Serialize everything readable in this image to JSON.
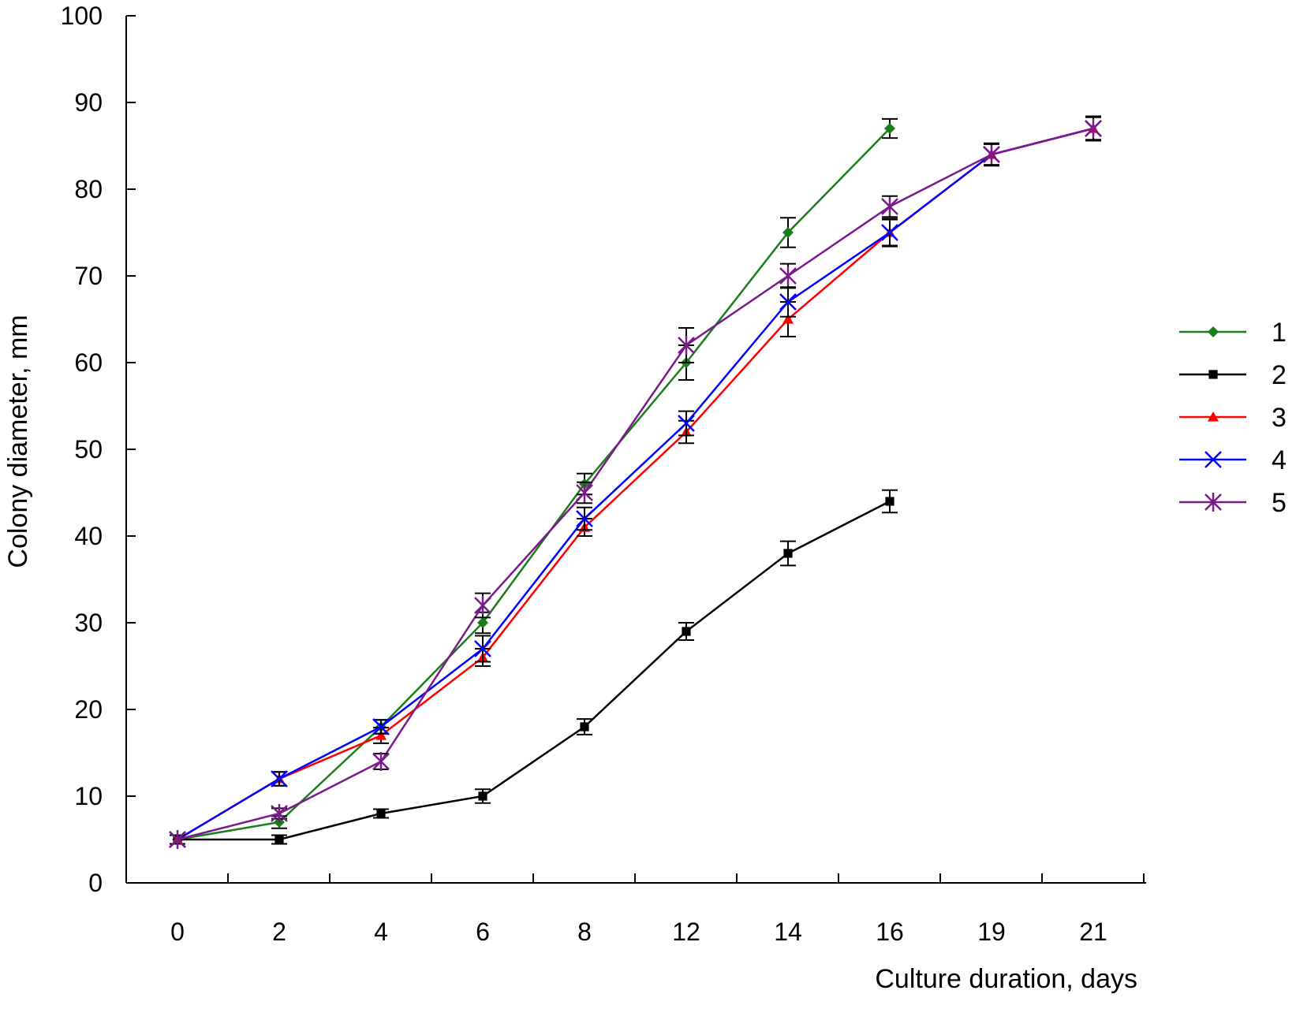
{
  "chart_data": {
    "type": "line",
    "title": "",
    "xlabel": "Culture duration, days",
    "ylabel": "Colony diameter, mm",
    "categories": [
      "0",
      "2",
      "4",
      "6",
      "8",
      "12",
      "14",
      "16",
      "19",
      "21"
    ],
    "y_ticks": [
      "0",
      "10",
      "20",
      "30",
      "40",
      "50",
      "60",
      "70",
      "80",
      "90",
      "100"
    ],
    "ylim": [
      0,
      100
    ],
    "legend_position": "right",
    "series": [
      {
        "name": "1",
        "color": "#1a7f1a",
        "marker": "diamond",
        "values": [
          5,
          7,
          18,
          30,
          46,
          60,
          75,
          87,
          null,
          null
        ],
        "errors": [
          0.5,
          0.7,
          0.8,
          1.2,
          1.2,
          2.0,
          1.7,
          1.1,
          null,
          null
        ]
      },
      {
        "name": "2",
        "color": "#000000",
        "marker": "square",
        "values": [
          5,
          5,
          8,
          10,
          18,
          29,
          38,
          44,
          null,
          null
        ],
        "errors": [
          0.5,
          0.5,
          0.5,
          0.8,
          0.9,
          1.0,
          1.4,
          1.3,
          null,
          null
        ]
      },
      {
        "name": "3",
        "color": "#ff0000",
        "marker": "triangle",
        "values": [
          5,
          12,
          17,
          26,
          41,
          52,
          65,
          75,
          84,
          87
        ],
        "errors": [
          0.5,
          0.8,
          0.9,
          1.0,
          1.0,
          1.3,
          2.0,
          1.6,
          1.3,
          1.4
        ]
      },
      {
        "name": "4",
        "color": "#0000ff",
        "marker": "x",
        "values": [
          5,
          12,
          18,
          27,
          42,
          53,
          67,
          75,
          84,
          87
        ],
        "errors": [
          0.5,
          0.8,
          0.8,
          1.5,
          1.3,
          1.4,
          1.7,
          1.5,
          1.2,
          1.4
        ]
      },
      {
        "name": "5",
        "color": "#7b1a8b",
        "marker": "star",
        "values": [
          5,
          8,
          14,
          32,
          45,
          62,
          70,
          78,
          84,
          87
        ],
        "errors": [
          0.5,
          0.6,
          0.9,
          1.4,
          1.2,
          2.0,
          1.4,
          1.2,
          1.2,
          1.3
        ]
      }
    ]
  }
}
